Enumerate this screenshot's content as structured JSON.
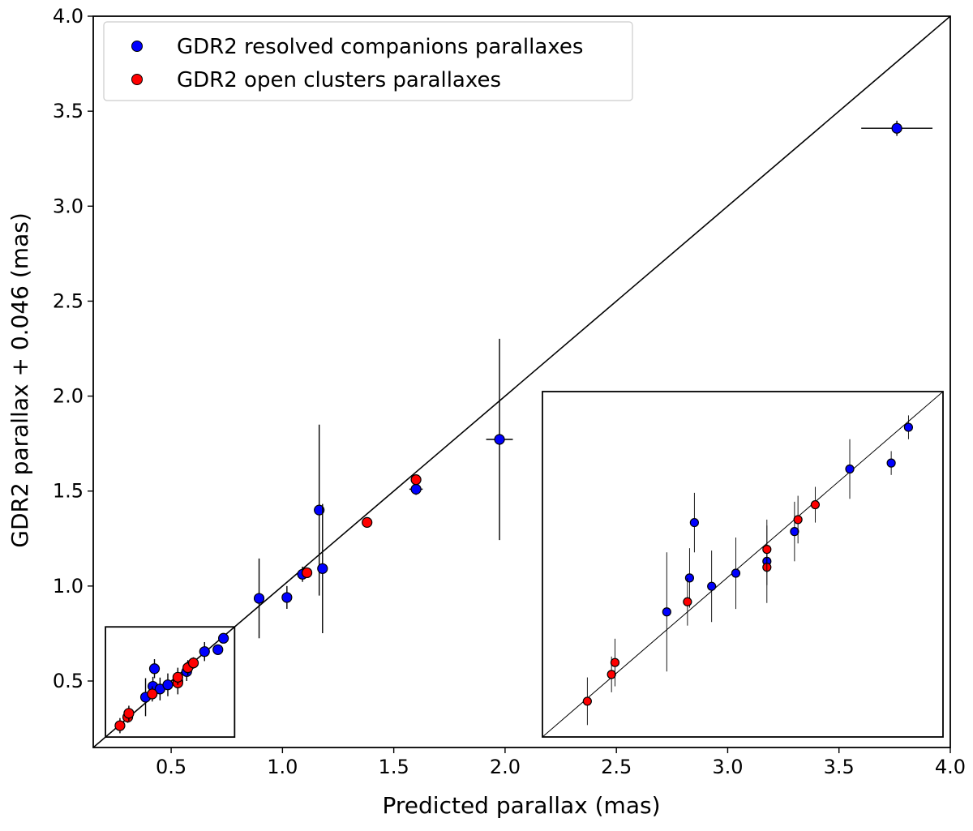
{
  "chart_data": {
    "type": "scatter",
    "title": "",
    "xlabel": "Predicted parallax (mas)",
    "ylabel": "GDR2 parallax + 0.046 (mas)",
    "xlim": [
      0.15,
      4.0
    ],
    "ylim": [
      0.15,
      4.0
    ],
    "grid": false,
    "legend_placement": "top-left",
    "xticks": [
      {
        "value": 0.5,
        "label": "0.5"
      },
      {
        "value": 1.0,
        "label": "1.0"
      },
      {
        "value": 1.5,
        "label": "1.5"
      },
      {
        "value": 2.0,
        "label": "2.0"
      },
      {
        "value": 2.5,
        "label": "2.5"
      },
      {
        "value": 3.0,
        "label": "3.0"
      },
      {
        "value": 3.5,
        "label": "3.5"
      },
      {
        "value": 4.0,
        "label": "4.0"
      }
    ],
    "yticks": [
      {
        "value": 0.5,
        "label": "0.5"
      },
      {
        "value": 1.0,
        "label": "1.0"
      },
      {
        "value": 1.5,
        "label": "1.5"
      },
      {
        "value": 2.0,
        "label": "2.0"
      },
      {
        "value": 2.5,
        "label": "2.5"
      },
      {
        "value": 3.0,
        "label": "3.0"
      },
      {
        "value": 3.5,
        "label": "3.5"
      },
      {
        "value": 4.0,
        "label": "4.0"
      }
    ],
    "reference_line": {
      "type": "identity",
      "description": "y = x"
    },
    "series": [
      {
        "name": "GDR2 resolved companions parallaxes",
        "color": "#0000ff",
        "points": [
          {
            "x": 0.385,
            "y": 0.415,
            "yerr": 0.1,
            "xerr": 0.0
          },
          {
            "x": 0.425,
            "y": 0.565,
            "yerr": 0.05,
            "xerr": 0.0
          },
          {
            "x": 0.418,
            "y": 0.472,
            "yerr": 0.05,
            "xerr": 0.0
          },
          {
            "x": 0.45,
            "y": 0.458,
            "yerr": 0.06,
            "xerr": 0.0
          },
          {
            "x": 0.485,
            "y": 0.48,
            "yerr": 0.06,
            "xerr": 0.0
          },
          {
            "x": 0.53,
            "y": 0.5,
            "yerr": 0.07,
            "xerr": 0.0
          },
          {
            "x": 0.57,
            "y": 0.55,
            "yerr": 0.05,
            "xerr": 0.0
          },
          {
            "x": 0.65,
            "y": 0.655,
            "yerr": 0.05,
            "xerr": 0.0
          },
          {
            "x": 0.71,
            "y": 0.665,
            "yerr": 0.02,
            "xerr": 0.0
          },
          {
            "x": 0.735,
            "y": 0.725,
            "yerr": 0.02,
            "xerr": 0.0
          },
          {
            "x": 0.895,
            "y": 0.935,
            "yerr": 0.21,
            "xerr": 0.0
          },
          {
            "x": 1.02,
            "y": 0.94,
            "yerr": 0.06,
            "xerr": 0.0
          },
          {
            "x": 1.09,
            "y": 1.062,
            "yerr": 0.04,
            "xerr": 0.0
          },
          {
            "x": 1.165,
            "y": 1.4,
            "yerr": 0.45,
            "xerr": 0.0
          },
          {
            "x": 1.18,
            "y": 1.092,
            "yerr": 0.34,
            "xerr": 0.0
          },
          {
            "x": 1.6,
            "y": 1.51,
            "yerr": 0.03,
            "xerr": 0.03
          },
          {
            "x": 1.975,
            "y": 1.772,
            "yerr": 0.53,
            "xerr": 0.06
          },
          {
            "x": 3.76,
            "y": 3.41,
            "yerr": 0.04,
            "xerr": 0.16
          }
        ]
      },
      {
        "name": "GDR2 open clusters parallaxes",
        "color": "#ff0000",
        "points": [
          {
            "x": 0.27,
            "y": 0.265,
            "yerr": 0.04,
            "xerr": 0.0
          },
          {
            "x": 0.305,
            "y": 0.31,
            "yerr": 0.03,
            "xerr": 0.0
          },
          {
            "x": 0.31,
            "y": 0.33,
            "yerr": 0.04,
            "xerr": 0.0
          },
          {
            "x": 0.415,
            "y": 0.432,
            "yerr": 0.04,
            "xerr": 0.0
          },
          {
            "x": 0.53,
            "y": 0.49,
            "yerr": 0.03,
            "xerr": 0.0
          },
          {
            "x": 0.53,
            "y": 0.52,
            "yerr": 0.04,
            "xerr": 0.0
          },
          {
            "x": 0.575,
            "y": 0.57,
            "yerr": 0.04,
            "xerr": 0.0
          },
          {
            "x": 0.6,
            "y": 0.595,
            "yerr": 0.03,
            "xerr": 0.0
          },
          {
            "x": 1.11,
            "y": 1.07,
            "yerr": 0.02,
            "xerr": 0.02
          },
          {
            "x": 1.38,
            "y": 1.335,
            "yerr": 0.02,
            "xerr": 0.02
          },
          {
            "x": 1.6,
            "y": 1.56,
            "yerr": 0.02,
            "xerr": 0.02
          }
        ]
      }
    ],
    "inset": {
      "description": "zoom of the region x 0.2–0.78, y 0.2–0.78 (boxed at lower left)",
      "xlim": [
        0.205,
        0.785
      ],
      "ylim": [
        0.205,
        0.785
      ],
      "source_box": {
        "xlim": [
          0.205,
          0.785
        ],
        "ylim": [
          0.205,
          0.785
        ]
      }
    }
  }
}
